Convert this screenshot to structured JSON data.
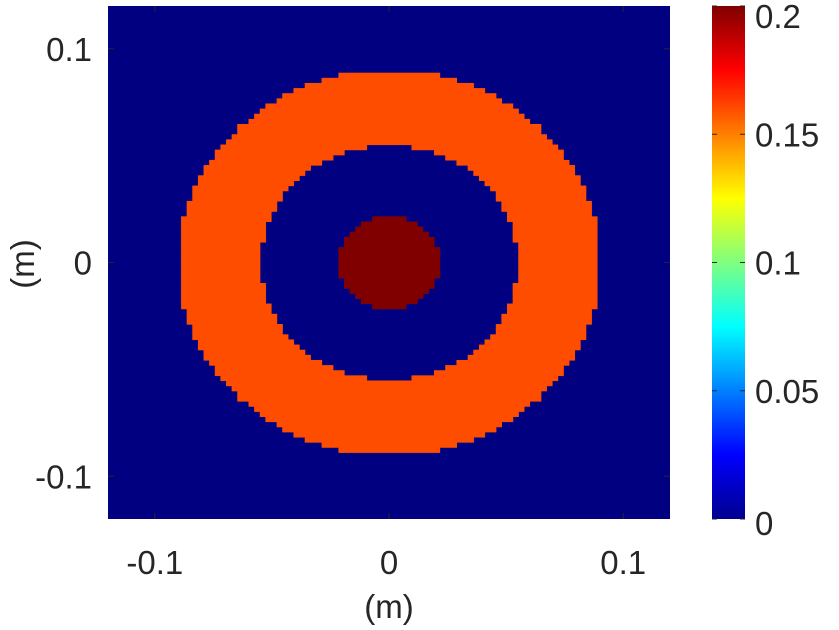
{
  "chart_data": {
    "type": "heatmap",
    "title": "",
    "xlabel": "(m)",
    "ylabel": "(m)",
    "xlim": [
      -0.12,
      0.12
    ],
    "ylim": [
      -0.12,
      0.12
    ],
    "x_ticks": [
      -0.1,
      0,
      0.1
    ],
    "y_ticks": [
      -0.1,
      0,
      0.1
    ],
    "x_tick_labels": [
      "-0.1",
      "0",
      "0.1"
    ],
    "y_tick_labels": [
      "-0.1",
      "0",
      "0.1"
    ],
    "colormap": "jet",
    "clim": [
      0,
      0.2
    ],
    "colorbar_ticks": [
      0,
      0.05,
      0.1,
      0.15,
      0.2
    ],
    "colorbar_tick_labels": [
      "0",
      "0.05",
      "0.1",
      "0.15",
      "0.2"
    ],
    "grid": false,
    "pixel_size_m": 0.0024,
    "background_value": 0,
    "regions": [
      {
        "shape": "annulus",
        "center": [
          0,
          0
        ],
        "inner_radius": 0.055,
        "outer_radius": 0.09,
        "value": 0.16
      },
      {
        "shape": "disk",
        "center": [
          0,
          0
        ],
        "radius": 0.022,
        "value": 0.2
      }
    ]
  },
  "colors": {
    "background_field": "#00007f",
    "ring": "#ff4f00",
    "core": "#7f0000",
    "axis_text": "#262626"
  }
}
